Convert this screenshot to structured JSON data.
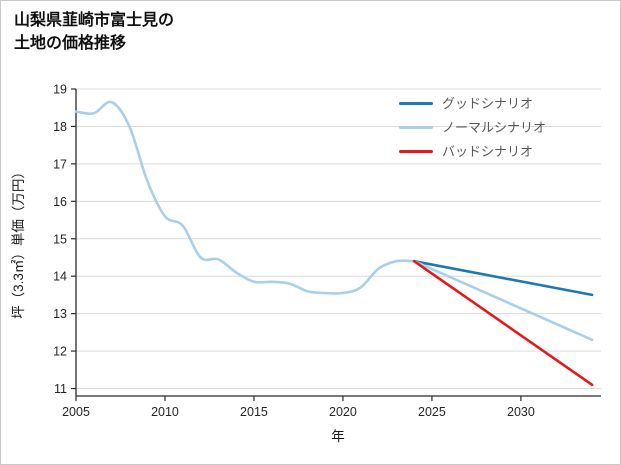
{
  "page": {
    "title": "山梨県韮崎市富士見の\n土地の価格推移"
  },
  "chart_data": {
    "type": "line",
    "title": "山梨県韮崎市富士見の 土地の価格推移",
    "xlabel": "年",
    "ylabel": "坪（3.3㎡）単価（万円）",
    "xlim": [
      2005,
      2034.5
    ],
    "ylim": [
      10.8,
      19
    ],
    "xticks": [
      2005,
      2010,
      2015,
      2020,
      2025,
      2030
    ],
    "yticks": [
      11,
      12,
      13,
      14,
      15,
      16,
      17,
      18,
      19
    ],
    "grid": "horizontal",
    "legend_position": "upper-right",
    "style": {
      "grid_color": "#dcdcdc",
      "axis_color": "#2b2b2b",
      "tick_text_color": "#262626",
      "legend_text_color": "#595959",
      "background": "#ffffff"
    },
    "series": [
      {
        "id": "history",
        "name": "",
        "in_legend": false,
        "color": "#a9cfea",
        "width": 2.6,
        "smooth": true,
        "x": [
          2005,
          2006,
          2007,
          2008,
          2009,
          2010,
          2011,
          2012,
          2013,
          2014,
          2015,
          2016,
          2017,
          2018,
          2019,
          2020,
          2021,
          2022,
          2023,
          2024
        ],
        "y": [
          18.4,
          18.35,
          18.65,
          18.0,
          16.55,
          15.6,
          15.35,
          14.5,
          14.45,
          14.1,
          13.85,
          13.85,
          13.8,
          13.6,
          13.55,
          13.55,
          13.7,
          14.2,
          14.4,
          14.4
        ]
      },
      {
        "id": "good",
        "name": "グッドシナリオ",
        "in_legend": true,
        "color": "#1f77b4",
        "width": 2.6,
        "smooth": false,
        "x": [
          2024,
          2034
        ],
        "y": [
          14.4,
          13.5
        ]
      },
      {
        "id": "normal",
        "name": "ノーマルシナリオ",
        "in_legend": true,
        "color": "#a9cfea",
        "width": 2.6,
        "smooth": false,
        "x": [
          2024,
          2034
        ],
        "y": [
          14.4,
          12.3
        ]
      },
      {
        "id": "bad",
        "name": "バッドシナリオ",
        "in_legend": true,
        "color": "#e31a1c",
        "width": 2.6,
        "smooth": false,
        "x": [
          2024,
          2034
        ],
        "y": [
          14.4,
          11.1
        ]
      }
    ]
  }
}
